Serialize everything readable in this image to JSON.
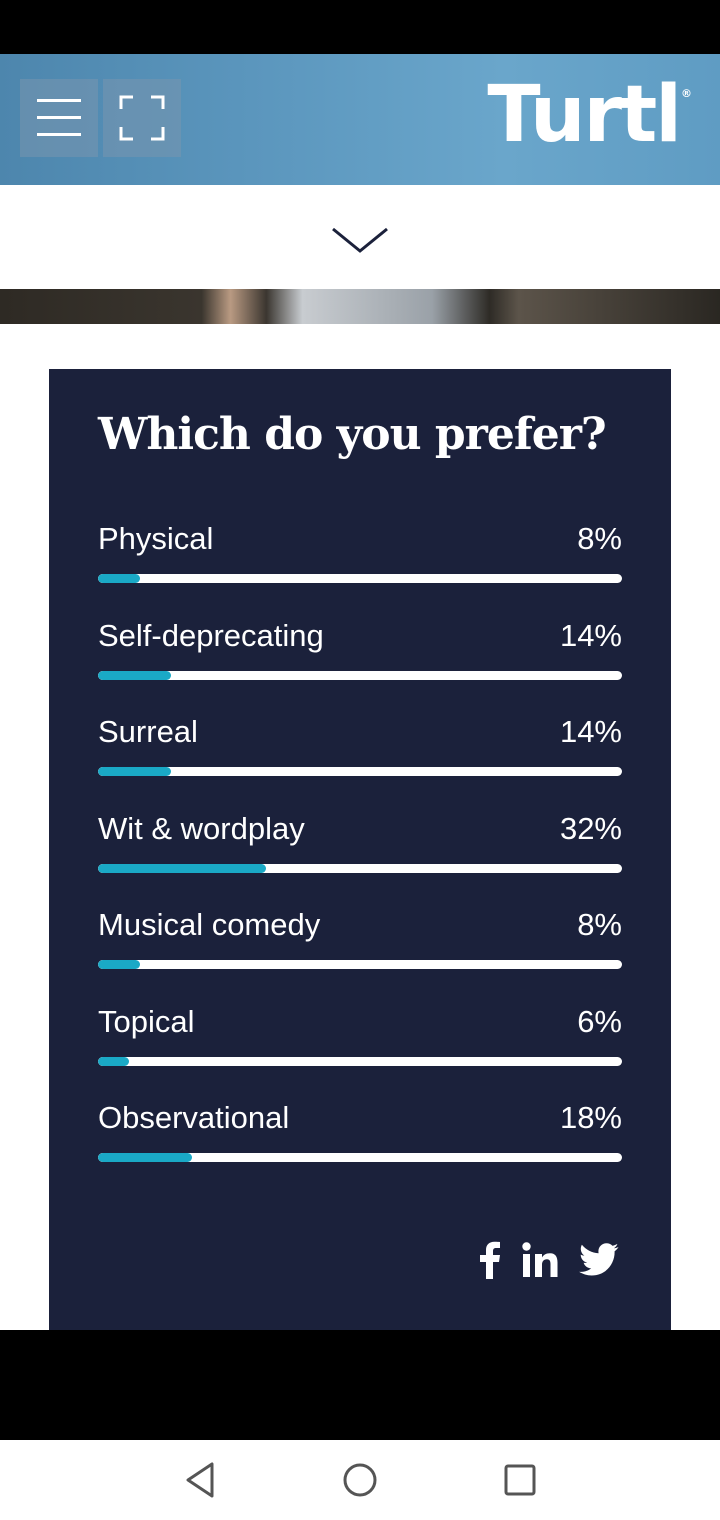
{
  "header": {
    "logo_text": "Turtl",
    "logo_mark": "®",
    "menu_icon": "hamburger-menu-icon",
    "fullscreen_icon": "fullscreen-icon"
  },
  "scroll_icon": "chevron-down-icon",
  "poll": {
    "title": "Which do you prefer?",
    "accent_color": "#1aa9c6",
    "options": [
      {
        "label": "Physical",
        "percent_text": "8%",
        "percent": 8
      },
      {
        "label": "Self-deprecating",
        "percent_text": "14%",
        "percent": 14
      },
      {
        "label": "Surreal",
        "percent_text": "14%",
        "percent": 14
      },
      {
        "label": "Wit & wordplay",
        "percent_text": "32%",
        "percent": 32
      },
      {
        "label": "Musical comedy",
        "percent_text": "8%",
        "percent": 8
      },
      {
        "label": "Topical",
        "percent_text": "6%",
        "percent": 6
      },
      {
        "label": "Observational",
        "percent_text": "18%",
        "percent": 18
      }
    ],
    "share_icons": [
      "facebook-icon",
      "linkedin-icon",
      "twitter-icon"
    ]
  },
  "navbar": {
    "icons": [
      "back-triangle-icon",
      "home-circle-icon",
      "recents-square-icon"
    ]
  }
}
